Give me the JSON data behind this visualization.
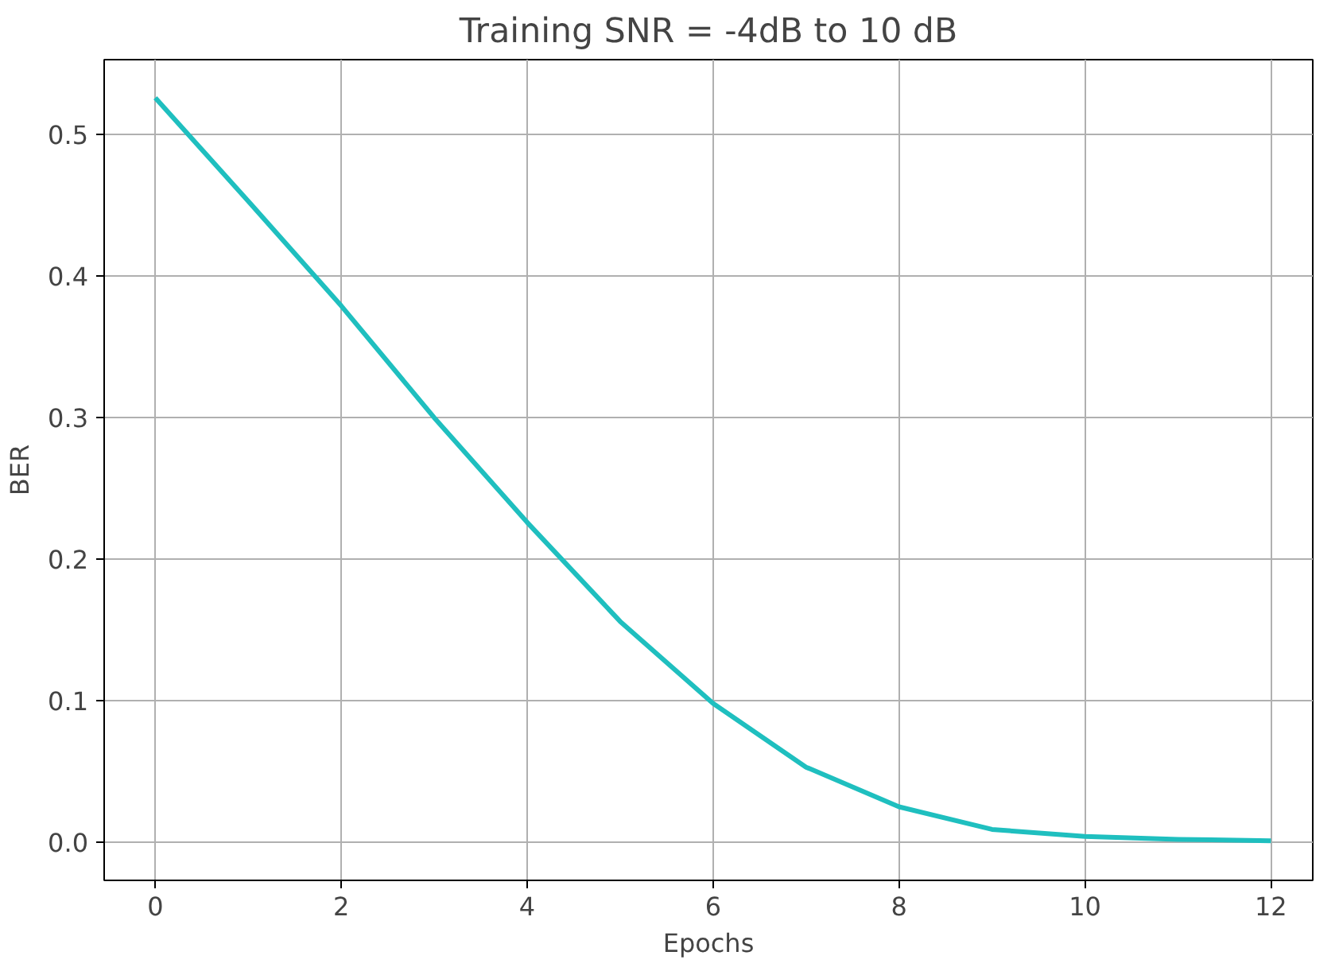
{
  "chart_data": {
    "type": "line",
    "title": "Training SNR = -4dB to 10 dB",
    "xlabel": "Epochs",
    "ylabel": "BER",
    "x": [
      0,
      1,
      2,
      3,
      4,
      5,
      6,
      7,
      8,
      9,
      10,
      11,
      12
    ],
    "series": [
      {
        "color": "#1fbfbf",
        "values": [
          0.526,
          0.453,
          0.379,
          0.3,
          0.226,
          0.156,
          0.098,
          0.053,
          0.025,
          0.009,
          0.004,
          0.002,
          0.001
        ]
      }
    ],
    "xlim": [
      -0.55,
      12.45
    ],
    "ylim": [
      -0.027,
      0.553
    ],
    "xticks": [
      0,
      2,
      4,
      6,
      8,
      10,
      12
    ],
    "yticks": [
      {
        "value": 0,
        "label": "0.0"
      },
      0.1,
      0.2,
      0.3,
      0.4,
      0.5
    ],
    "grid": true,
    "marker": "none",
    "line_style": "solid"
  }
}
